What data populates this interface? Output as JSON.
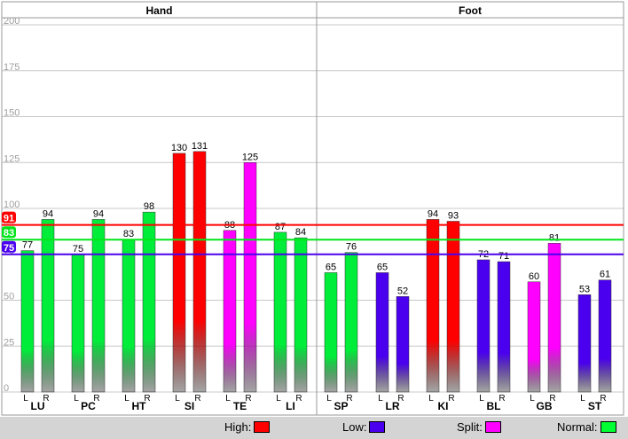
{
  "chart_data": {
    "type": "bar",
    "groups": [
      {
        "name": "Hand",
        "channels": [
          {
            "name": "LU",
            "L": 77,
            "R": 94,
            "L_status": "normal",
            "R_status": "normal"
          },
          {
            "name": "PC",
            "L": 75,
            "R": 94,
            "L_status": "normal",
            "R_status": "normal"
          },
          {
            "name": "HT",
            "L": 83,
            "R": 98,
            "L_status": "normal",
            "R_status": "normal"
          },
          {
            "name": "SI",
            "L": 130,
            "R": 131,
            "L_status": "high",
            "R_status": "high"
          },
          {
            "name": "TE",
            "L": 88,
            "R": 125,
            "L_status": "split",
            "R_status": "split"
          },
          {
            "name": "LI",
            "L": 87,
            "R": 84,
            "L_status": "normal",
            "R_status": "normal"
          }
        ]
      },
      {
        "name": "Foot",
        "channels": [
          {
            "name": "SP",
            "L": 65,
            "R": 76,
            "L_status": "normal",
            "R_status": "normal"
          },
          {
            "name": "LR",
            "L": 65,
            "R": 52,
            "L_status": "low",
            "R_status": "low"
          },
          {
            "name": "KI",
            "L": 94,
            "R": 93,
            "L_status": "high",
            "R_status": "high"
          },
          {
            "name": "BL",
            "L": 72,
            "R": 71,
            "L_status": "low",
            "R_status": "low"
          },
          {
            "name": "GB",
            "L": 60,
            "R": 81,
            "L_status": "split",
            "R_status": "split"
          },
          {
            "name": "ST",
            "L": 53,
            "R": 61,
            "L_status": "low",
            "R_status": "low"
          }
        ]
      }
    ],
    "side_labels": [
      "L",
      "R"
    ],
    "ylim": [
      0,
      200
    ],
    "yticks": [
      0,
      25,
      50,
      75,
      100,
      125,
      150,
      175,
      200
    ],
    "grid": true,
    "reference_lines": [
      {
        "label": "91",
        "value": 91,
        "color": "#ff0000"
      },
      {
        "label": "83",
        "value": 83,
        "color": "#00e61a"
      },
      {
        "label": "75",
        "value": 75,
        "color": "#4a00ee"
      }
    ],
    "status_colors": {
      "high": "#ff0000",
      "low": "#4a00ee",
      "split": "#ff00ff",
      "normal": "#00ee3a"
    }
  },
  "legend": [
    {
      "label": "High:",
      "color": "#ff0000"
    },
    {
      "label": "Low:",
      "color": "#4a00ee"
    },
    {
      "label": "Split:",
      "color": "#ff00ff"
    },
    {
      "label": "Normal:",
      "color": "#00ff33"
    }
  ]
}
